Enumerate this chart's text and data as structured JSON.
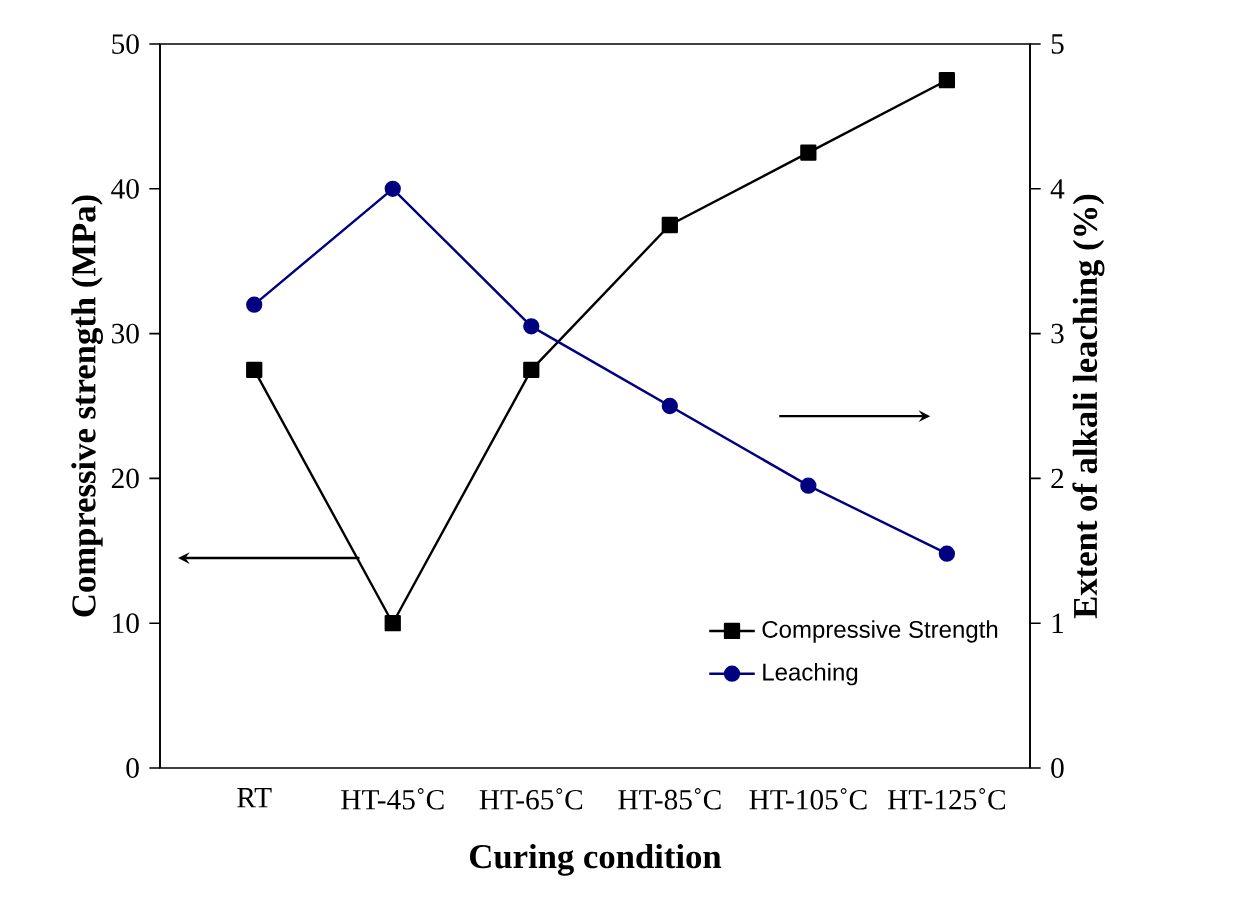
{
  "chart_data": {
    "type": "line",
    "xlabel": "Curing condition",
    "ylabel": "Compressive strength (MPa)",
    "y2label": "Extent of alkali leaching (%)",
    "categories": [
      "RT",
      "HT-45˚C",
      "HT-65˚C",
      "HT-85˚C",
      "HT-105˚C",
      "HT-125˚C"
    ],
    "series": [
      {
        "name": "Compressive Strength",
        "color": "#000000",
        "marker": "square",
        "values": [
          27.5,
          10,
          27.5,
          37.5,
          42.5,
          47.5
        ]
      },
      {
        "name": "Leaching",
        "color": "#000080",
        "marker": "circle",
        "axis": "y2",
        "values": [
          3.2,
          4.0,
          3.05,
          2.5,
          1.95,
          1.48
        ]
      }
    ],
    "ylim": [
      0,
      50
    ],
    "yticks": [
      0,
      10,
      20,
      30,
      40,
      50
    ],
    "y2lim": [
      0,
      5
    ],
    "y2ticks": [
      0,
      1,
      2,
      3,
      4,
      5
    ],
    "legend": "bottom right",
    "grid": false
  }
}
